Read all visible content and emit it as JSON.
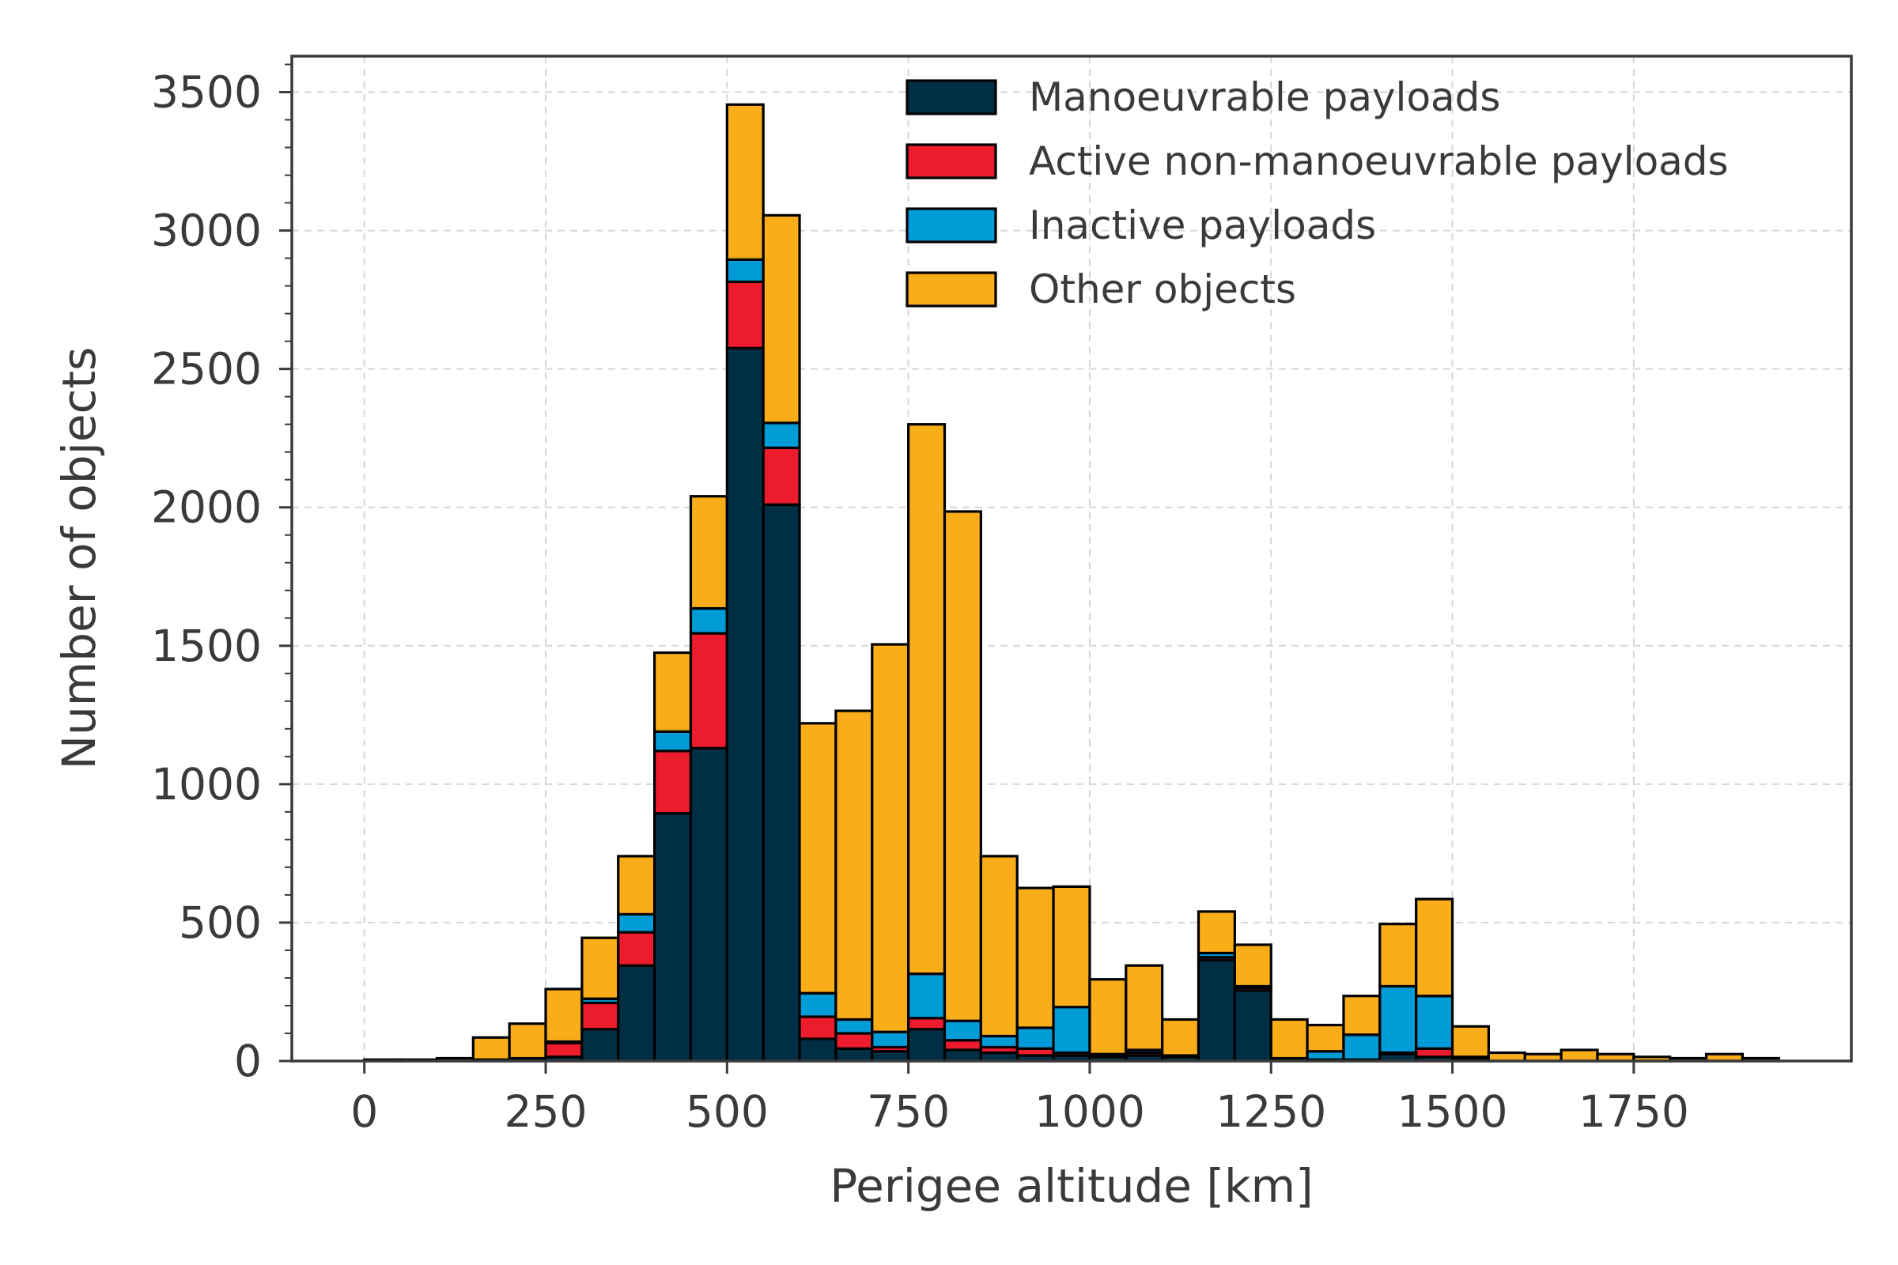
{
  "chart_data": {
    "type": "bar",
    "stacked": true,
    "xlabel": "Perigee altitude [km]",
    "ylabel": "Number of objects",
    "bin_width": 50,
    "xlim": [
      -100,
      2050
    ],
    "ylim": [
      0,
      3630
    ],
    "x_ticks": [
      0,
      250,
      500,
      750,
      1000,
      1250,
      1500,
      1750
    ],
    "y_ticks": [
      0,
      500,
      1000,
      1500,
      2000,
      2500,
      3000,
      3500
    ],
    "grid": true,
    "legend_position": "top-right",
    "bins": [
      0,
      50,
      100,
      150,
      200,
      250,
      300,
      350,
      400,
      450,
      500,
      550,
      600,
      650,
      700,
      750,
      800,
      850,
      900,
      950,
      1000,
      1050,
      1100,
      1150,
      1200,
      1250,
      1300,
      1350,
      1400,
      1450,
      1500,
      1550,
      1600,
      1650,
      1700,
      1750,
      1800,
      1850,
      1900
    ],
    "series": [
      {
        "name": "Manoeuvrable payloads",
        "color": "#002f45",
        "values": [
          0,
          0,
          0,
          5,
          10,
          15,
          115,
          345,
          895,
          1130,
          2575,
          2010,
          80,
          45,
          35,
          115,
          40,
          30,
          20,
          20,
          15,
          20,
          15,
          365,
          255,
          5,
          5,
          5,
          25,
          15,
          5,
          0,
          0,
          0,
          0,
          0,
          0,
          0,
          0
        ]
      },
      {
        "name": "Active non-manoeuvrable payloads",
        "color": "#ec1c2d",
        "values": [
          0,
          0,
          0,
          0,
          0,
          50,
          95,
          120,
          225,
          415,
          240,
          205,
          80,
          55,
          15,
          40,
          35,
          20,
          25,
          10,
          5,
          10,
          5,
          10,
          10,
          0,
          0,
          0,
          5,
          30,
          5,
          0,
          0,
          0,
          0,
          0,
          0,
          0,
          0
        ]
      },
      {
        "name": "Inactive payloads",
        "color": "#009cd7",
        "values": [
          0,
          0,
          0,
          0,
          0,
          5,
          15,
          65,
          70,
          90,
          80,
          90,
          85,
          50,
          55,
          160,
          70,
          40,
          75,
          165,
          5,
          10,
          0,
          15,
          5,
          5,
          30,
          90,
          240,
          190,
          5,
          0,
          0,
          0,
          0,
          0,
          0,
          0,
          0
        ]
      },
      {
        "name": "Other objects",
        "color": "#f9ad19",
        "values": [
          5,
          5,
          10,
          80,
          125,
          190,
          220,
          210,
          285,
          405,
          560,
          750,
          975,
          1115,
          1400,
          1985,
          1840,
          650,
          505,
          435,
          270,
          305,
          130,
          150,
          150,
          140,
          95,
          140,
          225,
          350,
          110,
          30,
          25,
          40,
          25,
          15,
          10,
          25,
          10
        ]
      }
    ]
  }
}
